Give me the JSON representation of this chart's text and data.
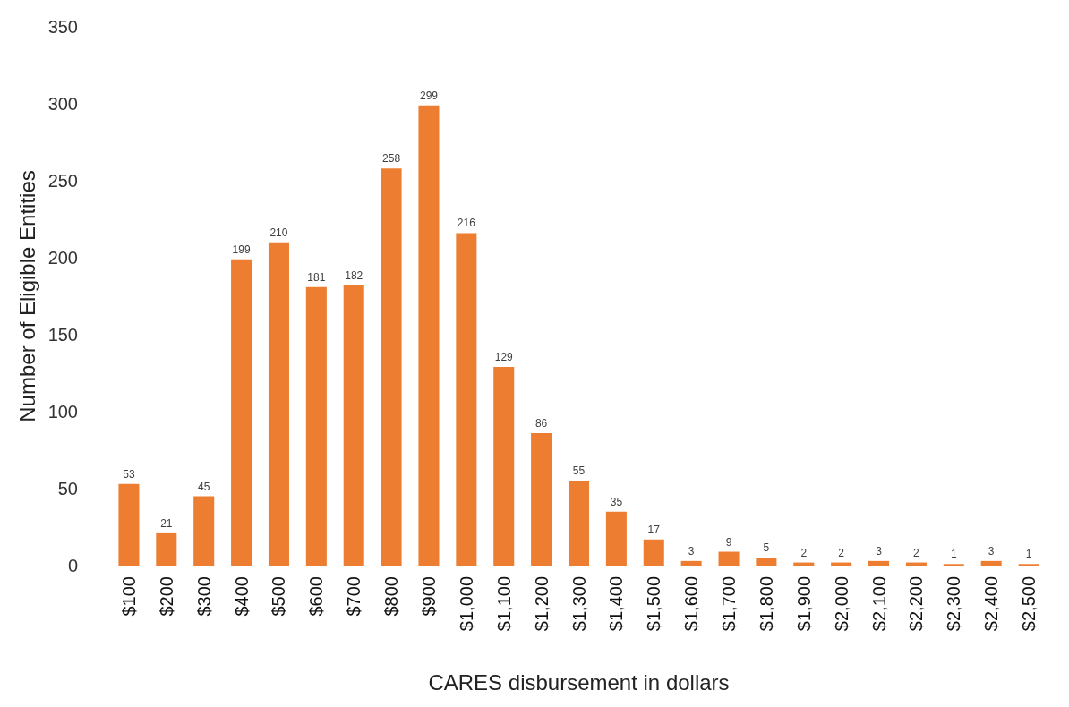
{
  "chart_data": {
    "type": "bar",
    "xlabel": "CARES disbursement in dollars",
    "ylabel": "Number of Eligible Entities",
    "categories": [
      "$100",
      "$200",
      "$300",
      "$400",
      "$500",
      "$600",
      "$700",
      "$800",
      "$900",
      "$1,000",
      "$1,100",
      "$1,200",
      "$1,300",
      "$1,400",
      "$1,500",
      "$1,600",
      "$1,700",
      "$1,800",
      "$1,900",
      "$2,000",
      "$2,100",
      "$2,200",
      "$2,300",
      "$2,400",
      "$2,500"
    ],
    "values": [
      53,
      21,
      45,
      199,
      210,
      181,
      182,
      258,
      299,
      216,
      129,
      86,
      55,
      35,
      17,
      3,
      9,
      5,
      2,
      2,
      3,
      2,
      1,
      3,
      1
    ],
    "color": "#ed7d31",
    "ylim": [
      0,
      350
    ],
    "yticks": [
      0,
      50,
      100,
      150,
      200,
      250,
      300,
      350
    ],
    "grid": false,
    "data_labels": true
  }
}
